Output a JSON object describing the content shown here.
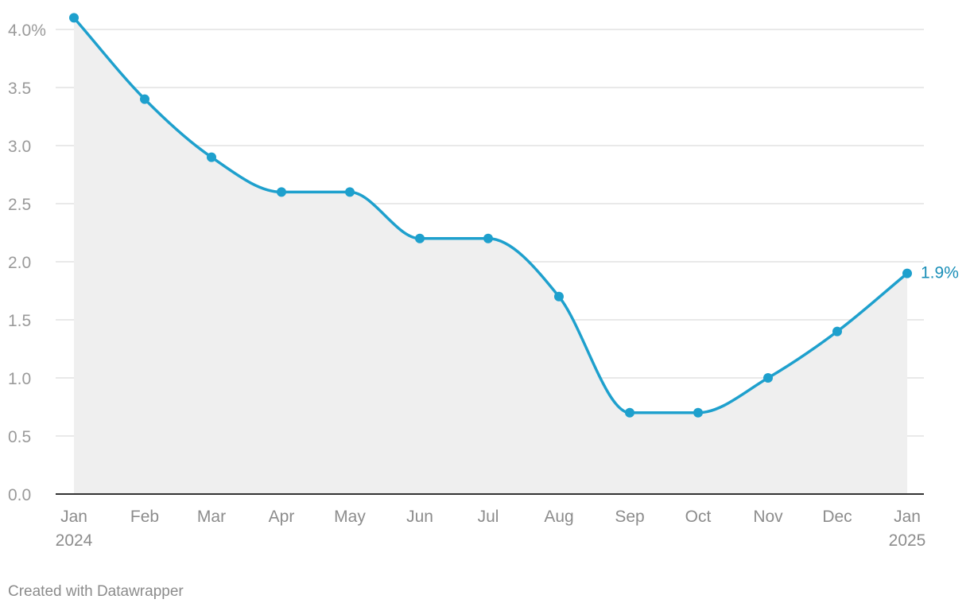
{
  "chart_data": {
    "type": "area",
    "title": "",
    "xlabel": "",
    "ylabel": "",
    "categories": [
      "Jan 2024",
      "Feb",
      "Mar",
      "Apr",
      "May",
      "Jun",
      "Jul",
      "Aug",
      "Sep",
      "Oct",
      "Nov",
      "Dec",
      "Jan 2025"
    ],
    "x_tick_labels": [
      {
        "line1": "Jan",
        "line2": "2024"
      },
      {
        "line1": "Feb",
        "line2": ""
      },
      {
        "line1": "Mar",
        "line2": ""
      },
      {
        "line1": "Apr",
        "line2": ""
      },
      {
        "line1": "May",
        "line2": ""
      },
      {
        "line1": "Jun",
        "line2": ""
      },
      {
        "line1": "Jul",
        "line2": ""
      },
      {
        "line1": "Aug",
        "line2": ""
      },
      {
        "line1": "Sep",
        "line2": ""
      },
      {
        "line1": "Oct",
        "line2": ""
      },
      {
        "line1": "Nov",
        "line2": ""
      },
      {
        "line1": "Dec",
        "line2": ""
      },
      {
        "line1": "Jan",
        "line2": "2025"
      }
    ],
    "values": [
      4.1,
      3.4,
      2.9,
      2.6,
      2.6,
      2.2,
      2.2,
      1.7,
      0.7,
      0.7,
      1.0,
      1.4,
      1.9
    ],
    "ylim": [
      0,
      4
    ],
    "y_ticks": [
      0,
      0.5,
      1.0,
      1.5,
      2.0,
      2.5,
      3.0,
      3.5,
      4.0
    ],
    "y_tick_labels": [
      "0.0",
      "0.5",
      "1.0",
      "1.5",
      "2.0",
      "2.5",
      "3.0",
      "3.5",
      "4.0%"
    ],
    "grid": true,
    "end_label": "1.9%",
    "colors": {
      "line": "#1ea0cd",
      "area": "#efefef",
      "end_label": "#1a8fb8",
      "grid": "#e2e2e2",
      "baseline": "#333333"
    }
  },
  "footer": {
    "credit": "Created with Datawrapper"
  }
}
